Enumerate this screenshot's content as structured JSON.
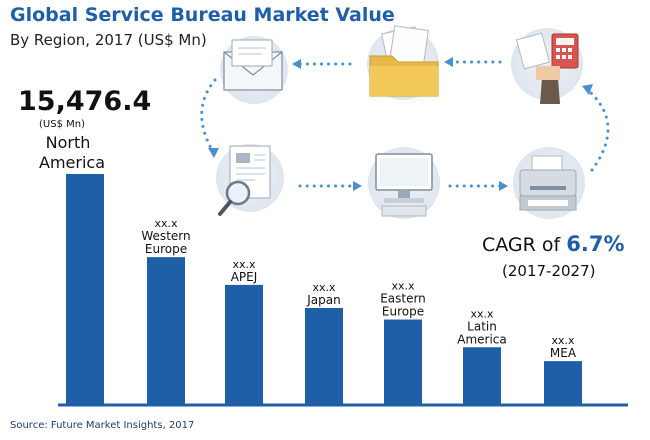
{
  "title": "Global Service Bureau Market Value",
  "subtitle": "By Region, 2017 (US$ Mn)",
  "source": "Source: Future Market Insights, 2017",
  "cagr": {
    "prefix": "CAGR of ",
    "value": "6.7%",
    "period": "(2017-2027)"
  },
  "colors": {
    "bar": "#1f5fa8",
    "title": "#1f5fa8",
    "icon_circle": "#e8eef4",
    "arrow_dots": "#4a90d0"
  },
  "icons": [
    "envelope-icon",
    "folder-icon",
    "calculator-icon",
    "document-search-icon",
    "computer-icon",
    "printer-icon"
  ],
  "chart_data": {
    "type": "bar",
    "categories": [
      "North America",
      "Western Europe",
      "APEJ",
      "Japan",
      "Eastern Europe",
      "Latin America",
      "MEA"
    ],
    "category_lines": [
      [
        "North",
        "America"
      ],
      [
        "Western",
        "Europe"
      ],
      [
        "APEJ"
      ],
      [
        "Japan"
      ],
      [
        "Eastern",
        "Europe"
      ],
      [
        "Latin",
        "America"
      ],
      [
        "MEA"
      ]
    ],
    "value_labels": [
      "15,476.4",
      "xx.x",
      "xx.x",
      "xx.x",
      "xx.x",
      "xx.x",
      "xx.x"
    ],
    "unit_label": "(US$ Mn)",
    "relative_values": [
      1.0,
      0.64,
      0.52,
      0.42,
      0.37,
      0.25,
      0.19
    ],
    "values": [
      15476.4,
      null,
      null,
      null,
      null,
      null,
      null
    ],
    "title": "Global Service Bureau Market Value",
    "xlabel": "",
    "ylabel": "",
    "grid": false,
    "legend": "none"
  }
}
